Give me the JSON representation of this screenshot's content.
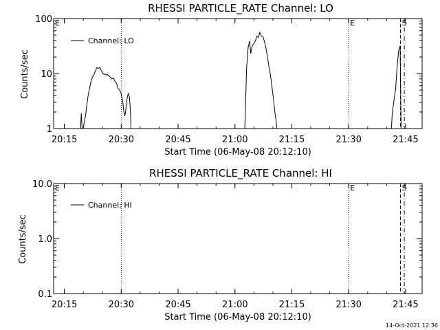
{
  "footer": {
    "stamp": "14-Oct-2021 12:36"
  },
  "chart_data": [
    {
      "type": "line",
      "title": "RHESSI PARTICLE_RATE Channel: LO",
      "xlabel": "Start Time (06-May-08 20:12:10)",
      "ylabel": "Counts/sec",
      "yscale": "log",
      "ylim": [
        1,
        100
      ],
      "xlim_minutes": [
        0,
        37
      ],
      "xticks": [
        {
          "m": 2.833,
          "label": "20:15"
        },
        {
          "m": 17.833,
          "label": "20:30"
        },
        {
          "m": 32.833,
          "label": "20:45"
        },
        {
          "m": 47.833,
          "label": "21:00"
        },
        {
          "m": 62.833,
          "label": "21:15"
        },
        {
          "m": 77.833,
          "label": "21:30"
        },
        {
          "m": 92.833,
          "label": "21:45"
        }
      ],
      "yticks": [
        {
          "v": 1,
          "label": "1"
        },
        {
          "v": 10,
          "label": "10"
        },
        {
          "v": 100,
          "label": "100"
        }
      ],
      "legend": {
        "label": "Channel: LO",
        "position": "top-left"
      },
      "markers": [
        {
          "m": 17.833,
          "style": "dotted",
          "label": ""
        },
        {
          "m": 77.833,
          "style": "dotted",
          "label": "E"
        },
        {
          "m": 91.5,
          "style": "dashed",
          "label": "S"
        },
        {
          "m": 92.5,
          "style": "dashdot",
          "label": ""
        }
      ],
      "corner_label": "E",
      "series": [
        {
          "label": "Channel: LO",
          "segments": [
            [
              [
                6.9,
                0.5
              ],
              [
                7.3,
                1.9
              ],
              [
                7.5,
                1.0
              ],
              [
                7.7,
                0.9
              ],
              [
                8.0,
                1.2
              ],
              [
                8.4,
                1.7
              ],
              [
                8.7,
                2.5
              ],
              [
                9.1,
                4.0
              ],
              [
                9.5,
                5.5
              ],
              [
                9.9,
                7.4
              ],
              [
                10.2,
                8.5
              ],
              [
                10.6,
                9.5
              ],
              [
                11.0,
                11.2
              ],
              [
                11.4,
                12.8
              ],
              [
                11.8,
                12.4
              ],
              [
                12.2,
                12.9
              ],
              [
                12.6,
                11.3
              ],
              [
                13.0,
                10.0
              ],
              [
                13.4,
                9.7
              ],
              [
                13.8,
                9.4
              ],
              [
                14.2,
                9.6
              ],
              [
                14.6,
                9.0
              ],
              [
                15.0,
                8.6
              ],
              [
                15.4,
                8.0
              ],
              [
                15.8,
                8.3
              ],
              [
                16.2,
                7.2
              ],
              [
                16.6,
                6.6
              ],
              [
                17.0,
                5.4
              ],
              [
                17.4,
                5.0
              ],
              [
                17.8,
                4.3
              ],
              [
                18.2,
                3.2
              ],
              [
                18.5,
                2.1
              ],
              [
                18.8,
                1.7
              ],
              [
                19.1,
                2.4
              ],
              [
                19.4,
                3.6
              ],
              [
                19.7,
                4.4
              ],
              [
                20.0,
                3.7
              ],
              [
                20.3,
                1.9
              ],
              [
                20.5,
                0.5
              ]
            ],
            [
              [
                50.3,
                0.5
              ],
              [
                50.9,
                12.6
              ],
              [
                51.3,
                29.8
              ],
              [
                51.7,
                39.2
              ],
              [
                52.0,
                23.2
              ],
              [
                52.4,
                32.1
              ],
              [
                52.8,
                35.0
              ],
              [
                53.2,
                39.5
              ],
              [
                53.6,
                47.7
              ],
              [
                54.0,
                45.5
              ],
              [
                54.4,
                56.0
              ],
              [
                54.8,
                48.2
              ],
              [
                55.2,
                47.0
              ],
              [
                55.6,
                38.5
              ],
              [
                56.0,
                29.0
              ],
              [
                56.4,
                20.2
              ],
              [
                56.8,
                13.3
              ],
              [
                57.2,
                9.4
              ],
              [
                57.6,
                5.7
              ],
              [
                58.0,
                3.4
              ],
              [
                58.4,
                1.9
              ],
              [
                58.8,
                1.2
              ],
              [
                59.1,
                0.5
              ]
            ],
            [
              [
                88.9,
                0.5
              ],
              [
                89.3,
                1.8
              ],
              [
                89.7,
                3.0
              ],
              [
                90.2,
                5.2
              ],
              [
                90.6,
                13.1
              ],
              [
                91.0,
                25.7
              ],
              [
                91.4,
                32.0
              ],
              [
                91.7,
                0.5
              ]
            ]
          ]
        }
      ]
    },
    {
      "type": "line",
      "title": "RHESSI PARTICLE_RATE Channel: HI",
      "xlabel": "Start Time (06-May-08 20:12:10)",
      "ylabel": "Counts/sec",
      "yscale": "log",
      "ylim": [
        0.1,
        10.0
      ],
      "xticks": [
        {
          "m": 2.833,
          "label": "20:15"
        },
        {
          "m": 17.833,
          "label": "20:30"
        },
        {
          "m": 32.833,
          "label": "20:45"
        },
        {
          "m": 47.833,
          "label": "21:00"
        },
        {
          "m": 62.833,
          "label": "21:15"
        },
        {
          "m": 77.833,
          "label": "21:30"
        },
        {
          "m": 92.833,
          "label": "21:45"
        }
      ],
      "yticks": [
        {
          "v": 0.1,
          "label": "0.1"
        },
        {
          "v": 1.0,
          "label": "1.0"
        },
        {
          "v": 10.0,
          "label": "10.0"
        }
      ],
      "legend": {
        "label": "Channel: HI",
        "position": "top-left"
      },
      "markers": [
        {
          "m": 17.833,
          "style": "dotted",
          "label": ""
        },
        {
          "m": 77.833,
          "style": "dotted",
          "label": "E"
        },
        {
          "m": 91.5,
          "style": "dashed",
          "label": "S"
        },
        {
          "m": 92.5,
          "style": "dashdot",
          "label": ""
        }
      ],
      "corner_label": "E",
      "series": [
        {
          "label": "Channel: HI",
          "segments": []
        }
      ]
    }
  ]
}
